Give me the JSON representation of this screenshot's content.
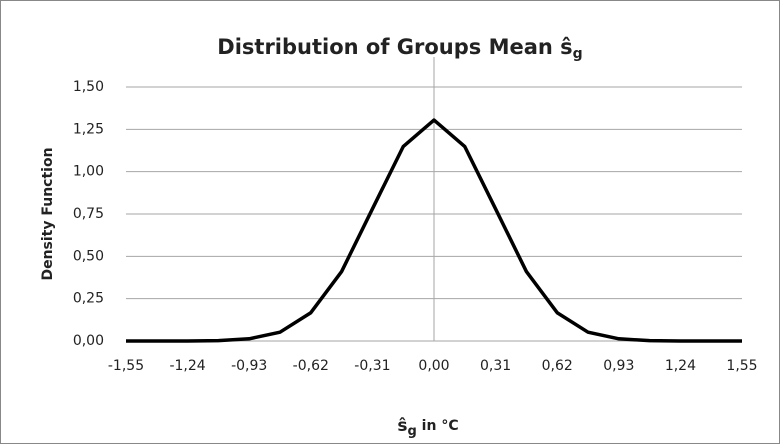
{
  "chart_data": {
    "type": "line",
    "title": [
      "Distribution of Groups Mean ŝ",
      "g"
    ],
    "ylabel": "Density Function",
    "xlabel": [
      "ŝ",
      "g",
      " in °C"
    ],
    "x": [
      -1.55,
      -1.395,
      -1.24,
      -1.085,
      -0.93,
      -0.775,
      -0.62,
      -0.465,
      -0.31,
      -0.155,
      0,
      0.155,
      0.31,
      0.465,
      0.62,
      0.775,
      0.93,
      1.085,
      1.24,
      1.395,
      1.55
    ],
    "series": [
      {
        "name": "Density",
        "color": "#000000",
        "values": [
          0,
          0,
          0,
          0.002,
          0.013,
          0.052,
          0.167,
          0.41,
          0.78,
          1.148,
          1.305,
          1.148,
          0.78,
          0.41,
          0.167,
          0.052,
          0.013,
          0.002,
          0,
          0,
          0
        ]
      }
    ],
    "xlim": [
      -1.55,
      1.55
    ],
    "ylim": [
      0,
      1.5
    ],
    "xticks": [
      {
        "value": -1.55,
        "label": "-1,55"
      },
      {
        "value": -1.24,
        "label": "-1,24"
      },
      {
        "value": -0.93,
        "label": "-0,93"
      },
      {
        "value": -0.62,
        "label": "-0,62"
      },
      {
        "value": -0.31,
        "label": "-0,31"
      },
      {
        "value": 0,
        "label": "0,00"
      },
      {
        "value": 0.31,
        "label": "0,31"
      },
      {
        "value": 0.62,
        "label": "0,62"
      },
      {
        "value": 0.93,
        "label": "0,93"
      },
      {
        "value": 1.24,
        "label": "1,24"
      },
      {
        "value": 1.55,
        "label": "1,55"
      }
    ],
    "yticks": [
      {
        "value": 0,
        "label": "0,00"
      },
      {
        "value": 0.25,
        "label": "0,25"
      },
      {
        "value": 0.5,
        "label": "0,50"
      },
      {
        "value": 0.75,
        "label": "0,75"
      },
      {
        "value": 1,
        "label": "1,00"
      },
      {
        "value": 1.25,
        "label": "1,25"
      },
      {
        "value": 1.5,
        "label": "1,50"
      }
    ],
    "grid": true
  }
}
